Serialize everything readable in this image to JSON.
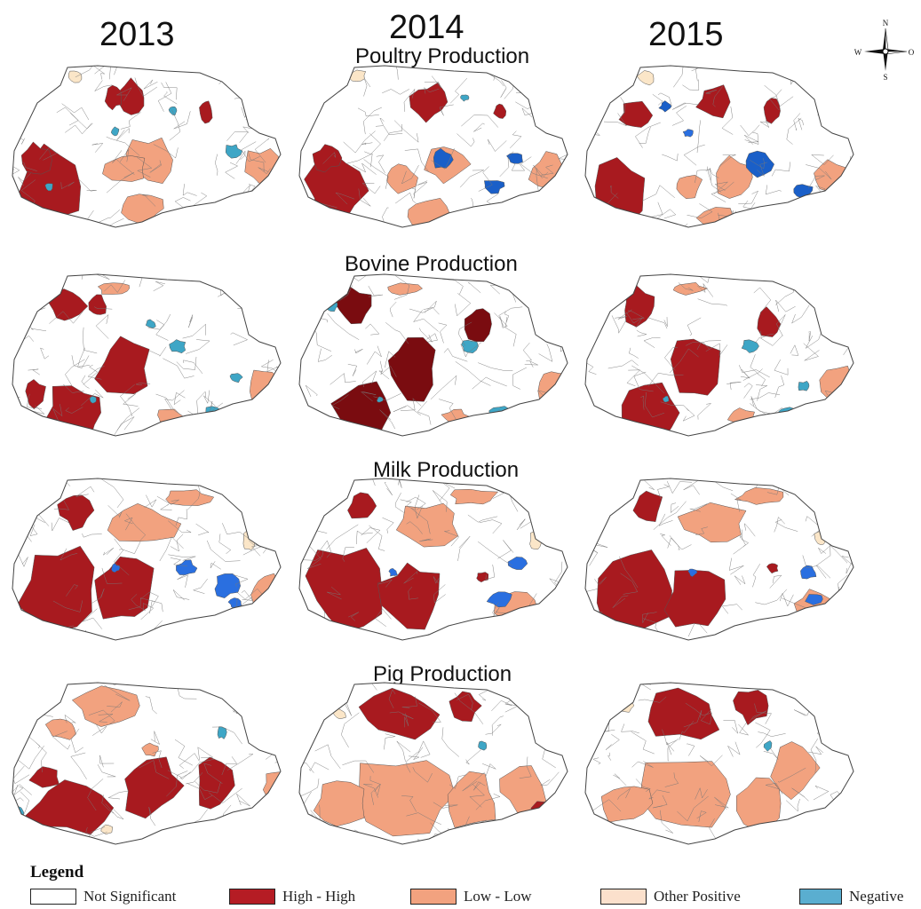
{
  "years": [
    "2013",
    "2014",
    "2015"
  ],
  "sections": [
    {
      "title": "Poultry Production"
    },
    {
      "title": "Bovine  Production"
    },
    {
      "title": "Milk Production"
    },
    {
      "title": "Pig Production"
    }
  ],
  "compass": {
    "n": "N",
    "s": "S",
    "w": "W",
    "e": "O"
  },
  "legend": {
    "title": "Legend",
    "items": [
      {
        "label": "Not Significant",
        "color": "#ffffff"
      },
      {
        "label": "High - High",
        "color": "#b51c24"
      },
      {
        "label": "Low - Low",
        "color": "#f2a27f"
      },
      {
        "label": "Other Positive",
        "color": "#fbe0cc"
      },
      {
        "label": "Negative",
        "color": "#5aaed0"
      }
    ]
  },
  "colors": {
    "high_high": "#a81a1f",
    "high_high_dark": "#7a0c10",
    "low_low": "#f2a27f",
    "other_positive": "#fbe6c8",
    "negative_light": "#3ea6c6",
    "negative_dark": "#1a5fc8",
    "negative_bright": "#2a6fe0"
  }
}
